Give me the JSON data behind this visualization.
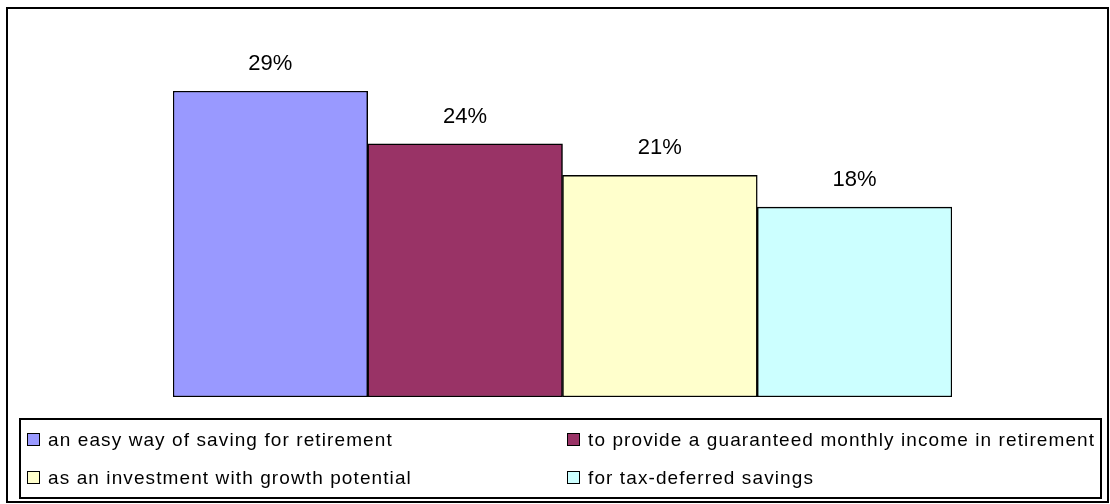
{
  "chart_data": {
    "type": "bar",
    "categories": [
      null
    ],
    "series": [
      {
        "name": "an easy way of saving for retirement",
        "color": "#9999ff",
        "values": [
          29
        ],
        "value_labels": [
          "29%"
        ]
      },
      {
        "name": "to provide a guaranteed monthly income in retirement",
        "color": "#993366",
        "values": [
          24
        ],
        "value_labels": [
          "24%"
        ]
      },
      {
        "name": "as an investment with growth potential",
        "color": "#ffffcc",
        "values": [
          21
        ],
        "value_labels": [
          "21%"
        ]
      },
      {
        "name": "for tax-deferred savings",
        "color": "#ccffff",
        "values": [
          18
        ],
        "value_labels": [
          "18%"
        ]
      }
    ],
    "legend": "bottom",
    "tick_labels": false
  }
}
